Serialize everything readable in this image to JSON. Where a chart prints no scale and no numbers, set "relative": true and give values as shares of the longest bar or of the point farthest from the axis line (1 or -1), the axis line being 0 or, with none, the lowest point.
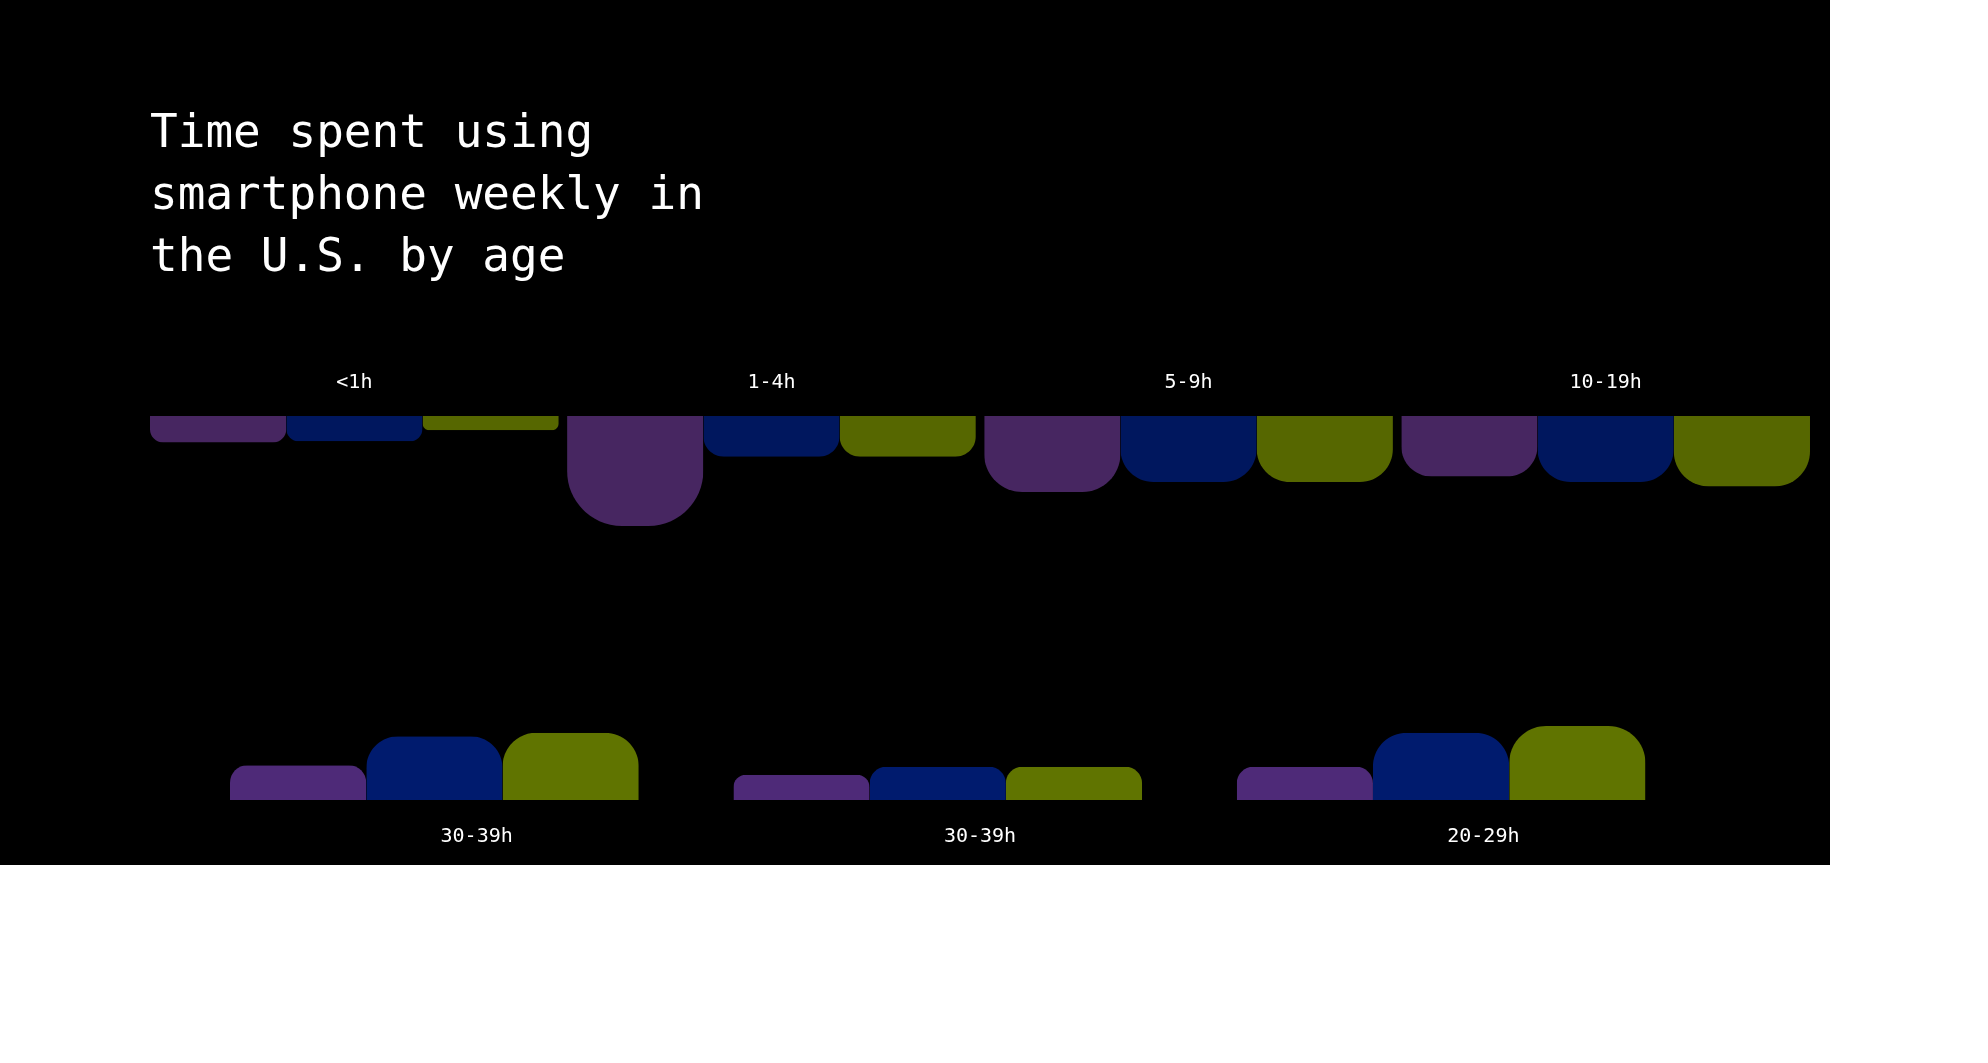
{
  "chart_data": [
    {
      "type": "bar",
      "title": "Time spent using smartphone weekly in the U.S. by age",
      "relative": true,
      "categories": [
        "<1h",
        "1-4h",
        "5-9h",
        "10-19h"
      ],
      "legend": false,
      "tick_labels": "x",
      "series": [
        {
          "color": "#472661",
          "values": [
            -0.24,
            -1,
            -0.69,
            -0.55
          ]
        },
        {
          "color": "#00175e",
          "values": [
            -0.23,
            -0.37,
            -0.6,
            -0.6
          ]
        },
        {
          "color": "#566700",
          "values": [
            -0.13,
            -0.37,
            -0.6,
            -0.64
          ]
        }
      ]
    },
    {
      "type": "bar",
      "relative": true,
      "categories": [
        "30-39h",
        "30-39h",
        "20-29h"
      ],
      "legend": false,
      "tick_labels": "x",
      "series": [
        {
          "color": "#4e2a78",
          "values": [
            0.47,
            0.34,
            0.45
          ]
        },
        {
          "color": "#001b6e",
          "values": [
            0.86,
            0.45,
            0.91
          ]
        },
        {
          "color": "#607400",
          "values": [
            0.91,
            0.45,
            1
          ]
        }
      ]
    }
  ]
}
